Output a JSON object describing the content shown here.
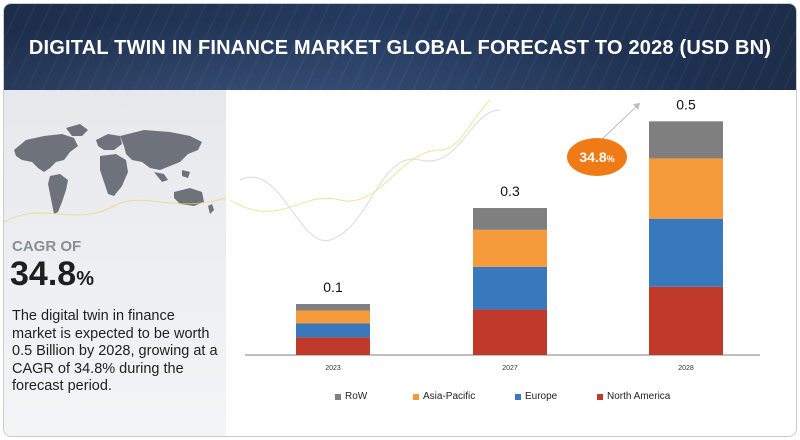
{
  "header": {
    "title": "DIGITAL TWIN IN FINANCE MARKET GLOBAL FORECAST TO 2028 (USD BN)"
  },
  "sidebar": {
    "cagr_label": "CAGR OF",
    "cagr_value": "34.8",
    "cagr_pct": "%",
    "description": "The digital twin in finance market is expected to be worth 0.5 Billion by 2028, growing at a CAGR of 34.8% during the forecast period."
  },
  "badge": {
    "value": "34.8",
    "pct": "%"
  },
  "colors": {
    "header_bg": "#1c2d4a",
    "north_america": "#c0392b",
    "europe": "#3a78bd",
    "asia_pacific": "#f59b3c",
    "row": "#7f7f7f",
    "badge": "#f07b16"
  },
  "chart_data": {
    "type": "bar",
    "stacked": true,
    "title": "DIGITAL TWIN IN FINANCE MARKET GLOBAL FORECAST TO 2028 (USD BN)",
    "categories": [
      "2023",
      "2027",
      "2028"
    ],
    "totals": [
      "0.1",
      "0.3",
      "0.5"
    ],
    "series": [
      {
        "name": "North America",
        "values": [
          0.038,
          0.098,
          0.147
        ]
      },
      {
        "name": "Europe",
        "values": [
          0.03,
          0.092,
          0.147
        ]
      },
      {
        "name": "Asia-Pacific",
        "values": [
          0.028,
          0.08,
          0.13
        ]
      },
      {
        "name": "RoW",
        "values": [
          0.014,
          0.047,
          0.08
        ]
      }
    ],
    "ylim": [
      0,
      0.55
    ],
    "legend": [
      "RoW",
      "Asia-Pacific",
      "Europe",
      "North America"
    ],
    "annotation": "34.8%"
  }
}
